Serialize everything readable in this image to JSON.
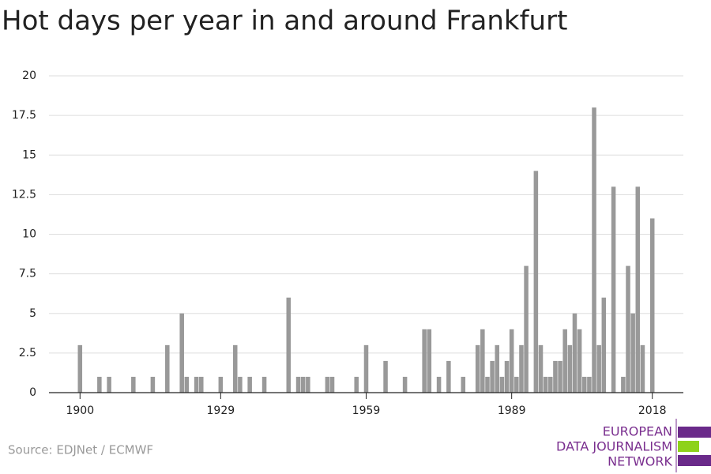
{
  "chart_data": {
    "type": "bar",
    "title": "Hot days per year in and around Frankfurt",
    "source": "Source: EDJNet / ECMWF",
    "logo": [
      "EUROPEAN",
      "DATA JOURNALISM",
      "NETWORK"
    ],
    "x": [
      1900,
      1904,
      1906,
      1911,
      1915,
      1918,
      1921,
      1922,
      1924,
      1925,
      1929,
      1932,
      1933,
      1935,
      1938,
      1943,
      1945,
      1946,
      1947,
      1951,
      1952,
      1957,
      1959,
      1963,
      1967,
      1971,
      1972,
      1974,
      1976,
      1979,
      1982,
      1983,
      1984,
      1985,
      1986,
      1987,
      1988,
      1989,
      1990,
      1991,
      1992,
      1994,
      1995,
      1996,
      1997,
      1998,
      1999,
      2000,
      2001,
      2002,
      2003,
      2004,
      2005,
      2006,
      2007,
      2008,
      2010,
      2012,
      2013,
      2014,
      2015,
      2016,
      2018
    ],
    "values": [
      3,
      1,
      1,
      1,
      1,
      3,
      5,
      1,
      1,
      1,
      1,
      3,
      1,
      1,
      1,
      6,
      1,
      1,
      1,
      1,
      1,
      1,
      3,
      2,
      1,
      4,
      4,
      1,
      2,
      1,
      3,
      4,
      1,
      2,
      3,
      1,
      2,
      4,
      1,
      3,
      8,
      14,
      3,
      1,
      1,
      2,
      2,
      4,
      3,
      5,
      4,
      1,
      1,
      18,
      3,
      6,
      13,
      1,
      8,
      5,
      13,
      3,
      11
    ],
    "color": "#999999",
    "xlim": [
      1893.6,
      2024.4
    ],
    "xticks": [
      1900,
      1929,
      1959,
      1989,
      2018
    ],
    "ylim": [
      0,
      20
    ],
    "yticks": [
      0,
      2.5,
      5,
      7.5,
      10,
      12.5,
      15,
      17.5,
      20
    ],
    "grid": true
  }
}
